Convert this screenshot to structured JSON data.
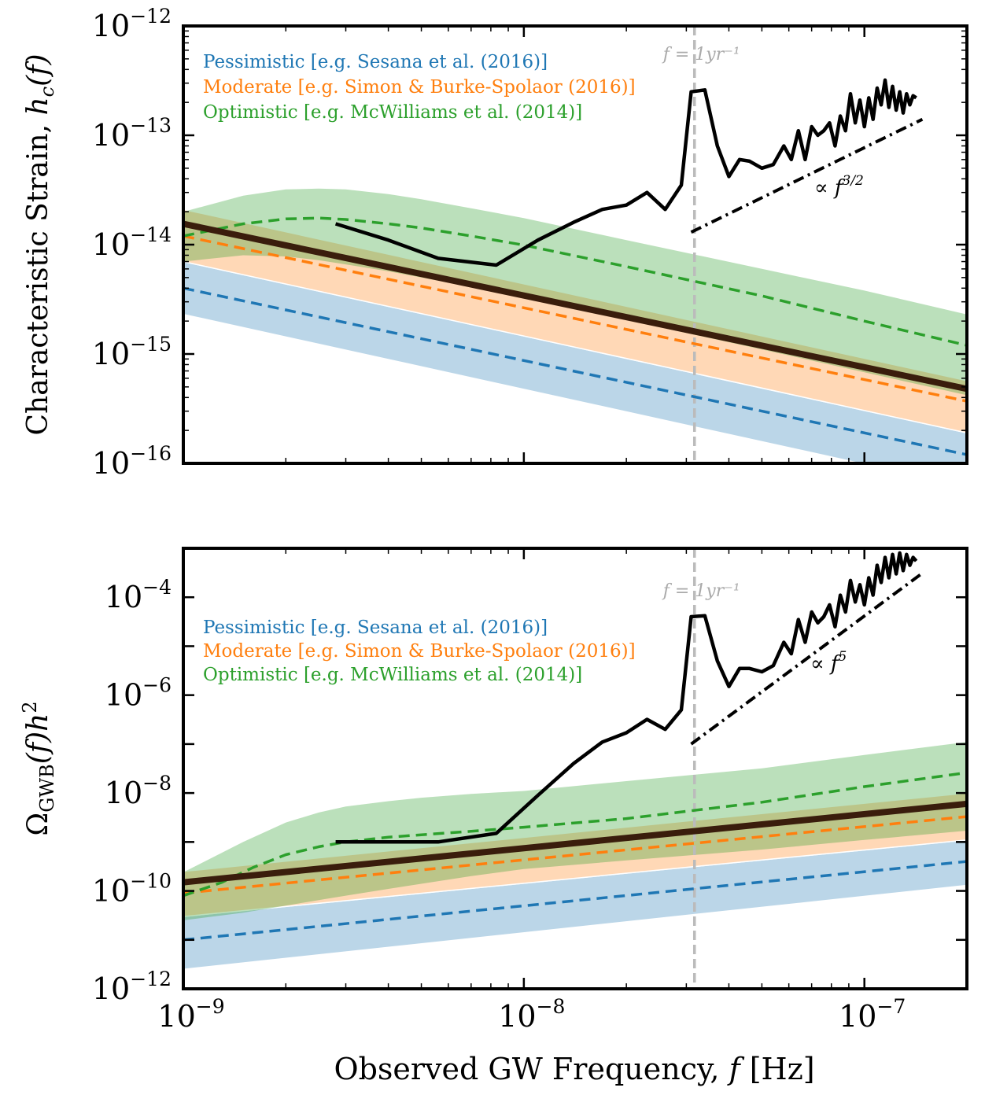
{
  "chart_data": [
    {
      "type": "line",
      "panel": "top",
      "ylabel": "Characteristic Strain, h_c(f)",
      "ylabel_parts": {
        "main": "Characteristic Strain, ",
        "sym": "h",
        "sub": "c",
        "arg": "(f)"
      },
      "xscale": "log",
      "yscale": "log",
      "xlim": [
        1e-09,
        2e-07
      ],
      "ylim": [
        1e-16,
        1e-12
      ],
      "ytick_labels": [
        {
          "value": 1e-16,
          "base": "10",
          "exp": "−16"
        },
        {
          "value": 1e-15,
          "base": "10",
          "exp": "−15"
        },
        {
          "value": 1e-14,
          "base": "10",
          "exp": "−14"
        },
        {
          "value": 1e-13,
          "base": "10",
          "exp": "−13"
        },
        {
          "value": 1e-12,
          "base": "10",
          "exp": "−12"
        }
      ],
      "legend": {
        "placement": "top-left",
        "entries": [
          {
            "text": "Pessimistic [e.g. Sesana et al. (2016)]",
            "color": "#1f77b4"
          },
          {
            "text": "Moderate [e.g. Simon & Burke-Spolaor (2016)]",
            "color": "#ff7f0e"
          },
          {
            "text": "Optimistic [e.g. McWilliams et al. (2014)]",
            "color": "#2ca02c"
          }
        ]
      },
      "vline": {
        "x": 3.17e-08,
        "label": "f = 1yr⁻¹",
        "color": "#bbbbbb"
      },
      "slope_annotation": {
        "text": "∝ f^{3/2}",
        "prefix": "∝ ",
        "sym": "f",
        "exp": "3/2"
      },
      "bands": [
        {
          "name": "Pessimistic",
          "color": "#1f77b4",
          "x": [
            1e-09,
            2e-07
          ],
          "lower": [
            2.3e-15,
            6.1e-17
          ],
          "upper": [
            7e-15,
            1.9e-16
          ]
        },
        {
          "name": "Moderate",
          "color": "#ff7f0e",
          "x": [
            1e-09,
            2e-07
          ],
          "lower": [
            7e-15,
            1.9e-16
          ],
          "upper": [
            2.1e-14,
            5.7e-16
          ]
        },
        {
          "name": "Optimistic",
          "color": "#2ca02c",
          "x": [
            1e-09,
            1.5e-09,
            2e-09,
            2.5e-09,
            3e-09,
            4e-09,
            5e-09,
            7e-09,
            1e-08,
            2e-08,
            5e-08,
            1e-07,
            2e-07
          ],
          "lower": [
            7e-15,
            8e-15,
            7.8e-15,
            7.2e-15,
            6.6e-15,
            5.7e-15,
            5e-15,
            4.1e-15,
            3.3e-15,
            2.05e-15,
            1.1e-15,
            6.8e-16,
            4.2e-16
          ],
          "upper": [
            2e-14,
            2.8e-14,
            3.2e-14,
            3.25e-14,
            3.2e-14,
            2.9e-14,
            2.6e-14,
            2.15e-14,
            1.75e-14,
            1.1e-14,
            6e-15,
            3.8e-15,
            2.3e-15
          ]
        }
      ],
      "series": [
        {
          "name": "Pessimistic",
          "style": "dashed",
          "color": "#1f77b4",
          "x": [
            1e-09,
            2e-07
          ],
          "y": [
            4e-15,
            1.2e-16
          ]
        },
        {
          "name": "Moderate",
          "style": "dashed",
          "color": "#ff7f0e",
          "x": [
            1e-09,
            2e-07
          ],
          "y": [
            1.2e-14,
            3.7e-16
          ]
        },
        {
          "name": "Optimistic",
          "style": "dashed",
          "color": "#2ca02c",
          "x": [
            1e-09,
            1.5e-09,
            2e-09,
            2.5e-09,
            3e-09,
            4e-09,
            5e-09,
            7e-09,
            1e-08,
            2e-08,
            5e-08,
            1e-07,
            2e-07
          ],
          "y": [
            1.2e-14,
            1.55e-14,
            1.72e-14,
            1.75e-14,
            1.7e-14,
            1.55e-14,
            1.42e-14,
            1.2e-14,
            9.9e-15,
            6.3e-15,
            3.4e-15,
            2e-15,
            1.2e-15
          ]
        },
        {
          "style": "solid-thick",
          "color": "#3a1d0c",
          "x": [
            1e-09,
            2e-07
          ],
          "y": [
            1.55e-14,
            4.8e-16
          ]
        },
        {
          "style": "solid",
          "color": "#000000",
          "x": [
            2.8e-09,
            4e-09,
            5.6e-09,
            8.3e-09,
            1.1e-08,
            1.4e-08,
            1.7e-08,
            2e-08,
            2.3e-08,
            2.6e-08,
            2.9e-08,
            3.1e-08,
            3.4e-08,
            3.7e-08,
            4e-08,
            4.3e-08,
            4.6e-08,
            5e-08,
            5.4e-08,
            5.8e-08,
            6.1e-08,
            6.4e-08,
            6.7e-08,
            7e-08,
            7.3e-08,
            7.6e-08,
            7.9e-08,
            8.2e-08,
            8.5e-08,
            8.8e-08,
            9.1e-08,
            9.4e-08,
            9.7e-08,
            1e-07,
            1.03e-07,
            1.06e-07,
            1.09e-07,
            1.12e-07,
            1.15e-07,
            1.18e-07,
            1.21e-07,
            1.24e-07,
            1.27e-07,
            1.3e-07,
            1.33e-07,
            1.36e-07,
            1.39e-07,
            1.42e-07
          ],
          "y": [
            1.55e-14,
            1.1e-14,
            7.5e-15,
            6.5e-15,
            1.1e-14,
            1.6e-14,
            2.1e-14,
            2.3e-14,
            3e-14,
            2.1e-14,
            3.5e-14,
            2.5e-13,
            2.6e-13,
            8e-14,
            4.2e-14,
            6e-14,
            5.8e-14,
            5e-14,
            5.4e-14,
            8e-14,
            6e-14,
            1.1e-13,
            6e-14,
            1.2e-13,
            1e-13,
            1.1e-13,
            1.3e-13,
            8e-14,
            1.5e-13,
            1.1e-13,
            2.4e-13,
            1.3e-13,
            2.1e-13,
            1.2e-13,
            2.2e-13,
            1.4e-13,
            2.7e-13,
            1.9e-13,
            3.2e-13,
            1.8e-13,
            2.8e-13,
            1.7e-13,
            2.5e-13,
            1.6e-13,
            2.4e-13,
            1.9e-13,
            2.3e-13,
            2.2e-13
          ]
        },
        {
          "style": "dashdot",
          "color": "#000000",
          "x": [
            3.1e-08,
            1.48e-07
          ],
          "y": [
            1.3e-14,
            1.4e-13
          ]
        }
      ]
    },
    {
      "type": "line",
      "panel": "bottom",
      "ylabel": "Ω_GWB(f)h²",
      "ylabel_parts": {
        "omega": "Ω",
        "sub": "GWB",
        "rest": "(f)h",
        "exp": "2"
      },
      "xlabel": "Observed GW Frequency, f [Hz]",
      "xlabel_parts": {
        "main": "Observed GW Frequency, ",
        "sym": "f",
        "unit": " [Hz]"
      },
      "xscale": "log",
      "yscale": "log",
      "xlim": [
        1e-09,
        2e-07
      ],
      "ylim": [
        1e-12,
        0.001
      ],
      "ytick_labels": [
        {
          "value": 1e-12,
          "base": "10",
          "exp": "−12"
        },
        {
          "value": 1e-10,
          "base": "10",
          "exp": "−10"
        },
        {
          "value": 1e-08,
          "base": "10",
          "exp": "−8"
        },
        {
          "value": 1e-06,
          "base": "10",
          "exp": "−6"
        },
        {
          "value": 0.0001,
          "base": "10",
          "exp": "−4"
        }
      ],
      "xtick_labels": [
        {
          "value": 1e-09,
          "base": "10",
          "exp": "−9"
        },
        {
          "value": 1e-08,
          "base": "10",
          "exp": "−8"
        },
        {
          "value": 1e-07,
          "base": "10",
          "exp": "−7"
        }
      ],
      "legend": {
        "placement": "upper-left",
        "entries": [
          {
            "text": "Pessimistic [e.g. Sesana et al. (2016)]",
            "color": "#1f77b4"
          },
          {
            "text": "Moderate [e.g. Simon & Burke-Spolaor (2016)]",
            "color": "#ff7f0e"
          },
          {
            "text": "Optimistic [e.g. McWilliams et al. (2014)]",
            "color": "#2ca02c"
          }
        ]
      },
      "vline": {
        "x": 3.17e-08,
        "label": "f = 1yr⁻¹",
        "color": "#bbbbbb"
      },
      "slope_annotation": {
        "text": "∝ f^5",
        "prefix": "∝ ",
        "sym": "f",
        "exp": "5"
      },
      "bands": [
        {
          "name": "Pessimistic",
          "color": "#1f77b4",
          "x": [
            1e-09,
            2e-07
          ],
          "lower": [
            2.5e-12,
            1.3e-10
          ],
          "upper": [
            3e-11,
            1.1e-09
          ]
        },
        {
          "name": "Moderate",
          "color": "#ff7f0e",
          "x": [
            1e-09,
            2e-07
          ],
          "lower": [
            3e-11,
            1.1e-09
          ],
          "upper": [
            2.5e-10,
            1e-08
          ]
        },
        {
          "name": "Optimistic",
          "color": "#2ca02c",
          "x": [
            1e-09,
            1.5e-09,
            2e-09,
            2.5e-09,
            3e-09,
            4e-09,
            5e-09,
            7e-09,
            1e-08,
            2e-08,
            5e-08,
            1e-07,
            2e-07
          ],
          "lower": [
            2.5e-11,
            3.6e-11,
            5e-11,
            6.5e-11,
            8e-11,
            1.1e-10,
            1.4e-10,
            2e-10,
            2.8e-10,
            4.2e-10,
            7e-10,
            1.1e-09,
            1.7e-09
          ],
          "upper": [
            2.4e-10,
            1e-09,
            2.5e-09,
            4e-09,
            5.3e-09,
            6.8e-09,
            8e-09,
            9.6e-09,
            1.1e-08,
            1.75e-08,
            3.2e-08,
            6e-08,
            1.1e-07
          ]
        }
      ],
      "series": [
        {
          "name": "Pessimistic",
          "style": "dashed",
          "color": "#1f77b4",
          "x": [
            1e-09,
            2e-07
          ],
          "y": [
            1e-11,
            4e-10
          ]
        },
        {
          "name": "Moderate",
          "style": "dashed",
          "color": "#ff7f0e",
          "x": [
            1e-09,
            2e-07
          ],
          "y": [
            9e-11,
            3.3e-09
          ]
        },
        {
          "name": "Optimistic",
          "style": "dashed",
          "color": "#2ca02c",
          "x": [
            1e-09,
            1.3e-09,
            1.6e-09,
            2e-09,
            2.5e-09,
            3e-09,
            4e-09,
            5e-09,
            7e-09,
            1e-08,
            2e-08,
            5e-08,
            1e-07,
            2e-07
          ],
          "y": [
            8e-11,
            1.5e-10,
            3e-10,
            5.5e-10,
            8e-10,
            1e-09,
            1.25e-09,
            1.4e-09,
            1.65e-09,
            2e-09,
            3e-09,
            6.5e-09,
            1.35e-08,
            2.6e-08
          ]
        },
        {
          "style": "solid-thick",
          "color": "#3a1d0c",
          "x": [
            1e-09,
            2e-07
          ],
          "y": [
            1.5e-10,
            6e-09
          ]
        },
        {
          "style": "solid",
          "color": "#000000",
          "x": [
            2.8e-09,
            4e-09,
            5.6e-09,
            8.3e-09,
            1.1e-08,
            1.4e-08,
            1.7e-08,
            2e-08,
            2.3e-08,
            2.6e-08,
            2.9e-08,
            3.1e-08,
            3.4e-08,
            3.7e-08,
            4e-08,
            4.3e-08,
            4.6e-08,
            5e-08,
            5.4e-08,
            5.8e-08,
            6.1e-08,
            6.4e-08,
            6.7e-08,
            7e-08,
            7.3e-08,
            7.6e-08,
            7.9e-08,
            8.2e-08,
            8.5e-08,
            8.8e-08,
            9.1e-08,
            9.4e-08,
            9.7e-08,
            1e-07,
            1.03e-07,
            1.06e-07,
            1.09e-07,
            1.12e-07,
            1.15e-07,
            1.18e-07,
            1.21e-07,
            1.24e-07,
            1.27e-07,
            1.3e-07,
            1.33e-07,
            1.36e-07,
            1.39e-07,
            1.42e-07
          ],
          "y": [
            1e-09,
            1e-09,
            1e-09,
            1.5e-09,
            9e-09,
            4e-08,
            1.1e-07,
            1.7e-07,
            3.2e-07,
            2e-07,
            5e-07,
            4e-05,
            4.2e-05,
            5e-06,
            1.5e-06,
            3.5e-06,
            3.5e-06,
            3e-06,
            4e-06,
            1.2e-05,
            7e-06,
            3.5e-05,
            1.2e-05,
            5e-05,
            3e-05,
            4e-05,
            7e-05,
            2.5e-05,
            0.00011,
            5e-05,
            0.00022,
            8e-05,
            0.00018,
            7e-05,
            0.00025,
            0.00011,
            0.00045,
            0.0002,
            0.00065,
            0.00025,
            0.00075,
            0.0003,
            0.0008,
            0.00035,
            0.00075,
            0.00045,
            0.00065,
            0.00055
          ]
        },
        {
          "style": "dashdot",
          "color": "#000000",
          "x": [
            3.1e-08,
            1.48e-07
          ],
          "y": [
            1e-07,
            0.00031
          ]
        }
      ]
    }
  ]
}
